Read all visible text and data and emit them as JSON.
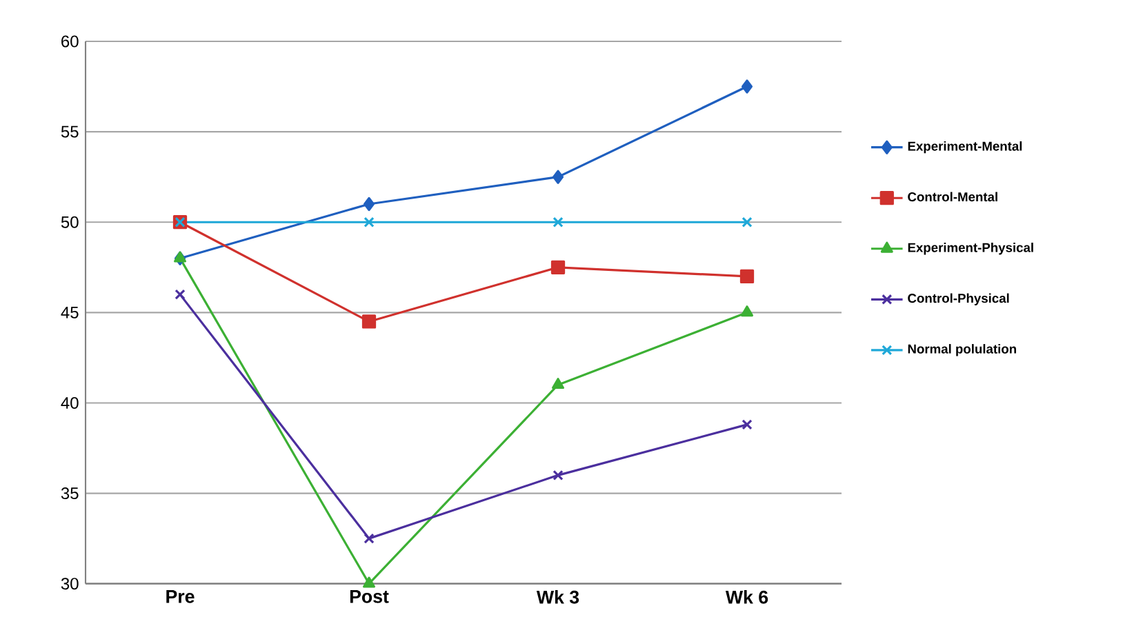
{
  "chart_data": {
    "type": "line",
    "categories": [
      "Pre",
      "Post",
      "Wk 3",
      "Wk 6"
    ],
    "series": [
      {
        "name": "Experiment-Mental",
        "color": "#1f5fbf",
        "marker": "diamond",
        "values": [
          48,
          51,
          52.5,
          57.5
        ]
      },
      {
        "name": "Control-Mental",
        "color": "#d0312d",
        "marker": "square",
        "values": [
          50,
          44.5,
          47.5,
          47
        ]
      },
      {
        "name": "Experiment-Physical",
        "color": "#3cb034",
        "marker": "triangle",
        "values": [
          48,
          30,
          41,
          45
        ]
      },
      {
        "name": "Control-Physical",
        "color": "#4b2f9e",
        "marker": "cross",
        "values": [
          46,
          32.5,
          36,
          38.8
        ]
      },
      {
        "name": "Normal polulation",
        "color": "#1fa8d8",
        "marker": "cross",
        "values": [
          50,
          50,
          50,
          50
        ]
      }
    ],
    "ylim": [
      30,
      60
    ],
    "yticks": [
      30,
      35,
      40,
      45,
      50,
      55,
      60
    ],
    "grid": "y",
    "legend": "right",
    "line_style": "solid"
  }
}
